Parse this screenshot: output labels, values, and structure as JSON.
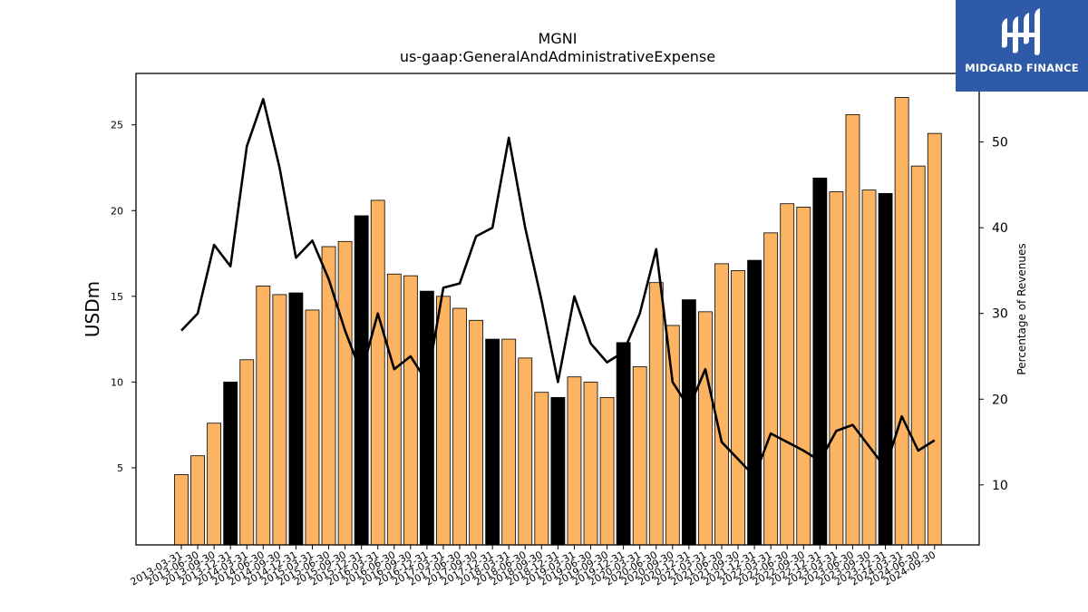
{
  "chart_data": {
    "type": "bar",
    "title": "MGNI",
    "subtitle": "us-gaap:GeneralAndAdministrativeExpense",
    "ylabel": "USDm",
    "y2label": "Percentage of Revenues",
    "ylim": [
      0.5,
      28
    ],
    "y2lim": [
      3,
      58
    ],
    "yticks": [
      5,
      10,
      15,
      20,
      25
    ],
    "y2ticks": [
      10,
      20,
      30,
      40,
      50
    ],
    "colors": {
      "bar": "#fdb462",
      "bar_q4": "#000000",
      "line": "#000000"
    },
    "categories": [
      "2013-03-31",
      "2013-06-30",
      "2013-09-30",
      "2013-12-31",
      "2014-03-31",
      "2014-06-30",
      "2014-09-30",
      "2014-12-31",
      "2015-03-31",
      "2015-06-30",
      "2015-09-30",
      "2015-12-31",
      "2016-03-31",
      "2016-06-30",
      "2016-09-30",
      "2016-12-31",
      "2017-03-31",
      "2017-06-30",
      "2017-09-30",
      "2017-12-31",
      "2018-03-31",
      "2018-06-30",
      "2018-09-30",
      "2018-12-31",
      "2019-03-31",
      "2019-06-30",
      "2019-09-30",
      "2019-12-31",
      "2020-03-31",
      "2020-06-30",
      "2020-09-30",
      "2020-12-31",
      "2021-03-31",
      "2021-06-30",
      "2021-09-30",
      "2021-12-31",
      "2022-03-31",
      "2022-06-30",
      "2022-09-30",
      "2022-12-31",
      "2023-03-31",
      "2023-06-30",
      "2023-09-30",
      "2023-12-31",
      "2024-03-31",
      "2024-06-30",
      "2024-09-30"
    ],
    "series": [
      {
        "type": "bar",
        "axis": "left",
        "values": [
          4.6,
          5.7,
          7.6,
          10.0,
          11.3,
          15.6,
          15.1,
          15.2,
          14.2,
          17.9,
          18.2,
          19.7,
          20.6,
          16.3,
          16.2,
          15.3,
          15.0,
          14.3,
          13.6,
          12.5,
          12.5,
          11.4,
          9.4,
          9.1,
          10.3,
          10.0,
          9.1,
          12.3,
          10.9,
          15.8,
          13.3,
          14.8,
          14.1,
          16.9,
          16.5,
          17.1,
          18.7,
          20.4,
          20.2,
          21.9,
          21.1,
          25.6,
          21.2,
          21.0,
          26.6,
          22.6,
          24.5
        ]
      },
      {
        "type": "line",
        "axis": "right",
        "values": [
          28,
          30,
          38,
          35.5,
          49.5,
          55,
          47,
          36.5,
          38.5,
          34,
          28,
          23,
          30,
          23.5,
          25,
          22,
          33,
          33.5,
          39,
          40,
          50.5,
          40,
          31.5,
          22,
          32,
          26.5,
          24.3,
          25.5,
          30,
          37.5,
          22,
          19,
          23.5,
          15,
          13,
          11,
          16,
          15,
          14,
          12.8,
          16.3,
          17,
          14.5,
          12,
          18,
          14,
          15.2
        ]
      }
    ]
  },
  "logo": {
    "text": "MIDGARD FINANCE"
  }
}
